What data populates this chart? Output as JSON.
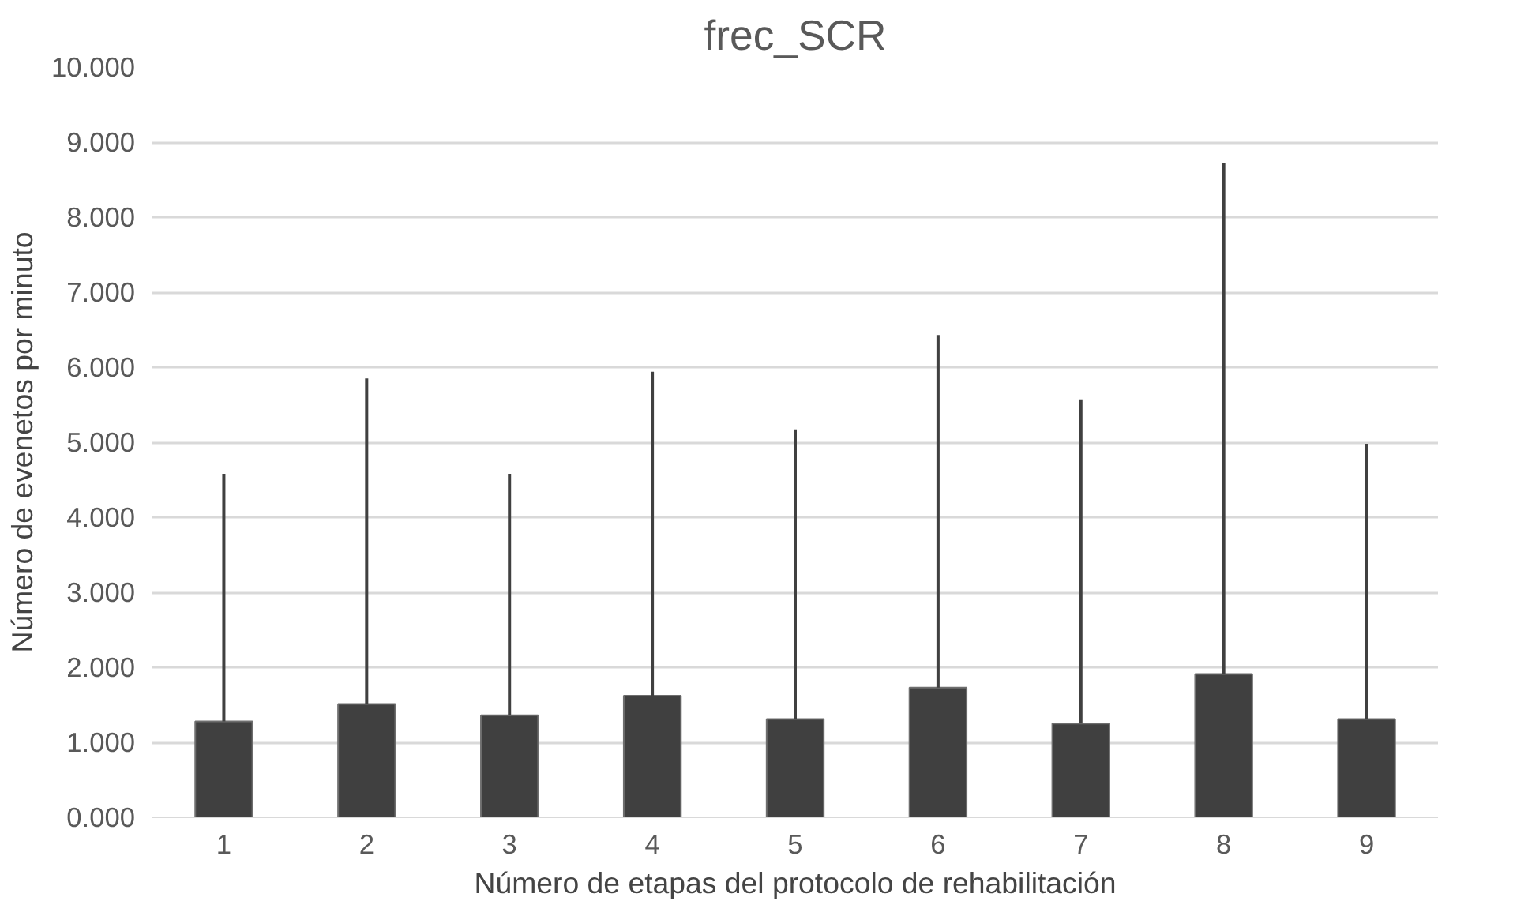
{
  "chart_data": {
    "type": "bar",
    "title": "frec_SCR",
    "xlabel": "Número de etapas del protocolo de rehabilitación",
    "ylabel": "Número de evenetos por minuto",
    "categories": [
      "1",
      "2",
      "3",
      "4",
      "5",
      "6",
      "7",
      "8",
      "9"
    ],
    "values": [
      1.28,
      1.51,
      1.36,
      1.62,
      1.31,
      1.73,
      1.25,
      1.91,
      1.31
    ],
    "errors": [
      [
        1.28,
        4.58
      ],
      [
        1.51,
        5.85
      ],
      [
        1.36,
        4.58
      ],
      [
        1.62,
        5.94
      ],
      [
        1.31,
        5.17
      ],
      [
        1.73,
        6.43
      ],
      [
        1.25,
        5.57
      ],
      [
        1.91,
        8.72
      ],
      [
        1.31,
        4.98
      ]
    ],
    "color": "#404040",
    "ylim": [
      0,
      10
    ],
    "yticks": [
      {
        "value": 0,
        "label": "0.000"
      },
      {
        "value": 1,
        "label": "1.000"
      },
      {
        "value": 2,
        "label": "2.000"
      },
      {
        "value": 3,
        "label": "3.000"
      },
      {
        "value": 4,
        "label": "4.000"
      },
      {
        "value": 5,
        "label": "5.000"
      },
      {
        "value": 6,
        "label": "6.000"
      },
      {
        "value": 7,
        "label": "7.000"
      },
      {
        "value": 8,
        "label": "8.000"
      },
      {
        "value": 9,
        "label": "9.000"
      },
      {
        "value": 10,
        "label": "10.000"
      }
    ],
    "grid": "y"
  }
}
